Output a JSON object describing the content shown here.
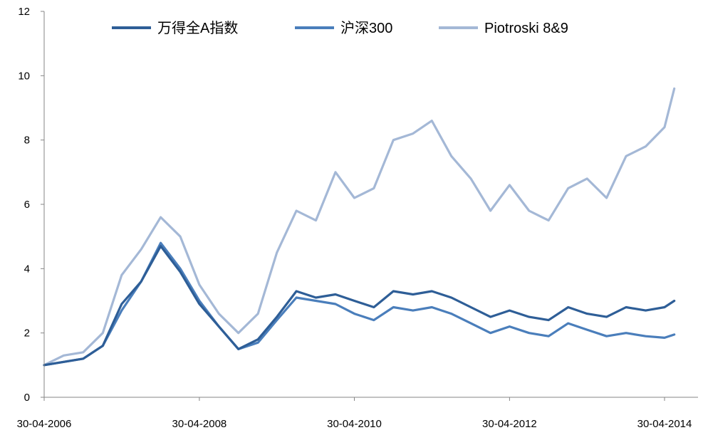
{
  "chart_data": {
    "type": "line",
    "title": "",
    "xlabel": "",
    "ylabel": "",
    "ylim": [
      0,
      12
    ],
    "xlim": [
      "2006-04-30",
      "2014-06-15"
    ],
    "y_ticks": [
      0,
      2,
      4,
      6,
      8,
      10,
      12
    ],
    "x_ticks": [
      "30-04-2006",
      "30-04-2008",
      "30-04-2010",
      "30-04-2012",
      "30-04-2014"
    ],
    "grid": false,
    "legend_position": "top",
    "series": [
      {
        "name": "万得全A指数",
        "color": "#2E5E97",
        "points": [
          [
            "2006-04-30",
            1.0
          ],
          [
            "2006-07-31",
            1.1
          ],
          [
            "2006-10-31",
            1.2
          ],
          [
            "2007-01-31",
            1.6
          ],
          [
            "2007-04-30",
            2.9
          ],
          [
            "2007-07-31",
            3.6
          ],
          [
            "2007-10-31",
            4.7
          ],
          [
            "2008-01-31",
            3.9
          ],
          [
            "2008-04-30",
            2.9
          ],
          [
            "2008-07-31",
            2.2
          ],
          [
            "2008-10-31",
            1.5
          ],
          [
            "2009-01-31",
            1.8
          ],
          [
            "2009-04-30",
            2.5
          ],
          [
            "2009-07-31",
            3.3
          ],
          [
            "2009-10-31",
            3.1
          ],
          [
            "2010-01-31",
            3.2
          ],
          [
            "2010-04-30",
            3.0
          ],
          [
            "2010-07-31",
            2.8
          ],
          [
            "2010-10-31",
            3.3
          ],
          [
            "2011-01-31",
            3.2
          ],
          [
            "2011-04-30",
            3.3
          ],
          [
            "2011-07-31",
            3.1
          ],
          [
            "2011-10-31",
            2.8
          ],
          [
            "2012-01-31",
            2.5
          ],
          [
            "2012-04-30",
            2.7
          ],
          [
            "2012-07-31",
            2.5
          ],
          [
            "2012-10-31",
            2.4
          ],
          [
            "2013-01-31",
            2.8
          ],
          [
            "2013-04-30",
            2.6
          ],
          [
            "2013-07-31",
            2.5
          ],
          [
            "2013-10-31",
            2.8
          ],
          [
            "2014-01-31",
            2.7
          ],
          [
            "2014-04-30",
            2.8
          ],
          [
            "2014-06-15",
            3.0
          ]
        ]
      },
      {
        "name": "沪深300",
        "color": "#4A7EBB",
        "points": [
          [
            "2006-04-30",
            1.0
          ],
          [
            "2006-07-31",
            1.1
          ],
          [
            "2006-10-31",
            1.2
          ],
          [
            "2007-01-31",
            1.6
          ],
          [
            "2007-04-30",
            2.7
          ],
          [
            "2007-07-31",
            3.6
          ],
          [
            "2007-10-31",
            4.8
          ],
          [
            "2008-01-31",
            4.0
          ],
          [
            "2008-04-30",
            3.0
          ],
          [
            "2008-07-31",
            2.2
          ],
          [
            "2008-10-31",
            1.5
          ],
          [
            "2009-01-31",
            1.7
          ],
          [
            "2009-04-30",
            2.4
          ],
          [
            "2009-07-31",
            3.1
          ],
          [
            "2009-10-31",
            3.0
          ],
          [
            "2010-01-31",
            2.9
          ],
          [
            "2010-04-30",
            2.6
          ],
          [
            "2010-07-31",
            2.4
          ],
          [
            "2010-10-31",
            2.8
          ],
          [
            "2011-01-31",
            2.7
          ],
          [
            "2011-04-30",
            2.8
          ],
          [
            "2011-07-31",
            2.6
          ],
          [
            "2011-10-31",
            2.3
          ],
          [
            "2012-01-31",
            2.0
          ],
          [
            "2012-04-30",
            2.2
          ],
          [
            "2012-07-31",
            2.0
          ],
          [
            "2012-10-31",
            1.9
          ],
          [
            "2013-01-31",
            2.3
          ],
          [
            "2013-04-30",
            2.1
          ],
          [
            "2013-07-31",
            1.9
          ],
          [
            "2013-10-31",
            2.0
          ],
          [
            "2014-01-31",
            1.9
          ],
          [
            "2014-04-30",
            1.85
          ],
          [
            "2014-06-15",
            1.95
          ]
        ]
      },
      {
        "name": "Piotroski 8&9",
        "color": "#A4B8D6",
        "points": [
          [
            "2006-04-30",
            1.0
          ],
          [
            "2006-07-31",
            1.3
          ],
          [
            "2006-10-31",
            1.4
          ],
          [
            "2007-01-31",
            2.0
          ],
          [
            "2007-04-30",
            3.8
          ],
          [
            "2007-07-31",
            4.6
          ],
          [
            "2007-10-31",
            5.6
          ],
          [
            "2008-01-31",
            5.0
          ],
          [
            "2008-04-30",
            3.5
          ],
          [
            "2008-07-31",
            2.6
          ],
          [
            "2008-10-31",
            2.0
          ],
          [
            "2009-01-31",
            2.6
          ],
          [
            "2009-04-30",
            4.5
          ],
          [
            "2009-07-31",
            5.8
          ],
          [
            "2009-10-31",
            5.5
          ],
          [
            "2010-01-31",
            7.0
          ],
          [
            "2010-04-30",
            6.2
          ],
          [
            "2010-07-31",
            6.5
          ],
          [
            "2010-10-31",
            8.0
          ],
          [
            "2011-01-31",
            8.2
          ],
          [
            "2011-04-30",
            8.6
          ],
          [
            "2011-07-31",
            7.5
          ],
          [
            "2011-10-31",
            6.8
          ],
          [
            "2012-01-31",
            5.8
          ],
          [
            "2012-04-30",
            6.6
          ],
          [
            "2012-07-31",
            5.8
          ],
          [
            "2012-10-31",
            5.5
          ],
          [
            "2013-01-31",
            6.5
          ],
          [
            "2013-04-30",
            6.8
          ],
          [
            "2013-07-31",
            6.2
          ],
          [
            "2013-10-31",
            7.5
          ],
          [
            "2014-01-31",
            7.8
          ],
          [
            "2014-04-30",
            8.4
          ],
          [
            "2014-06-15",
            9.6
          ]
        ]
      }
    ]
  }
}
